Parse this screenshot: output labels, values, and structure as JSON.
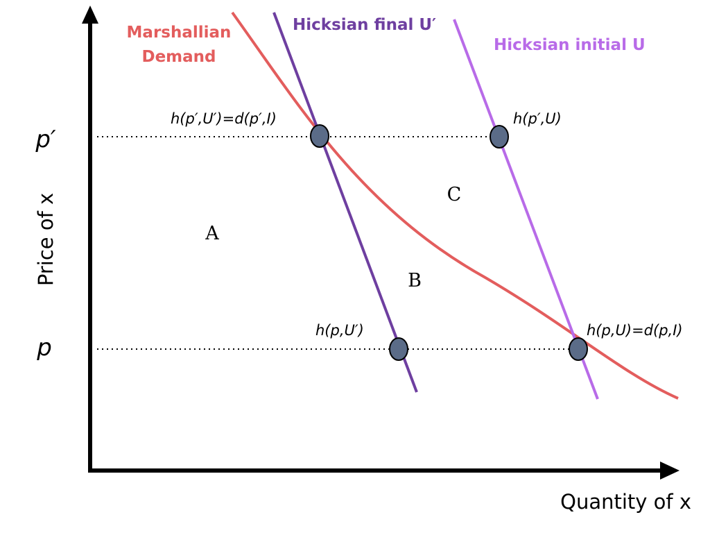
{
  "axes": {
    "y_label": "Price of x",
    "x_label": "Quantity of x"
  },
  "price_ticks": {
    "p_prime": "p′",
    "p": "p"
  },
  "curves": {
    "marshallian_line1": "Marshallian",
    "marshallian_line2": "Demand",
    "hicksian_final": "Hicksian final U′",
    "hicksian_initial": "Hicksian initial U"
  },
  "point_labels": {
    "h_pprime_Uprime": "h(p′,U′)=d(p′,I)",
    "h_pprime_U": "h(p′,U)",
    "h_p_Uprime": "h(p,U′)",
    "h_p_U": "h(p,U)=d(p,I)"
  },
  "regions": {
    "a": "A",
    "b": "B",
    "c": "C"
  },
  "colors": {
    "marshallian": "#E35D5D",
    "hicksian_final": "#6E3FA0",
    "hicksian_initial": "#B86BE8",
    "point_fill": "#5B6C88",
    "axis": "#000000"
  }
}
